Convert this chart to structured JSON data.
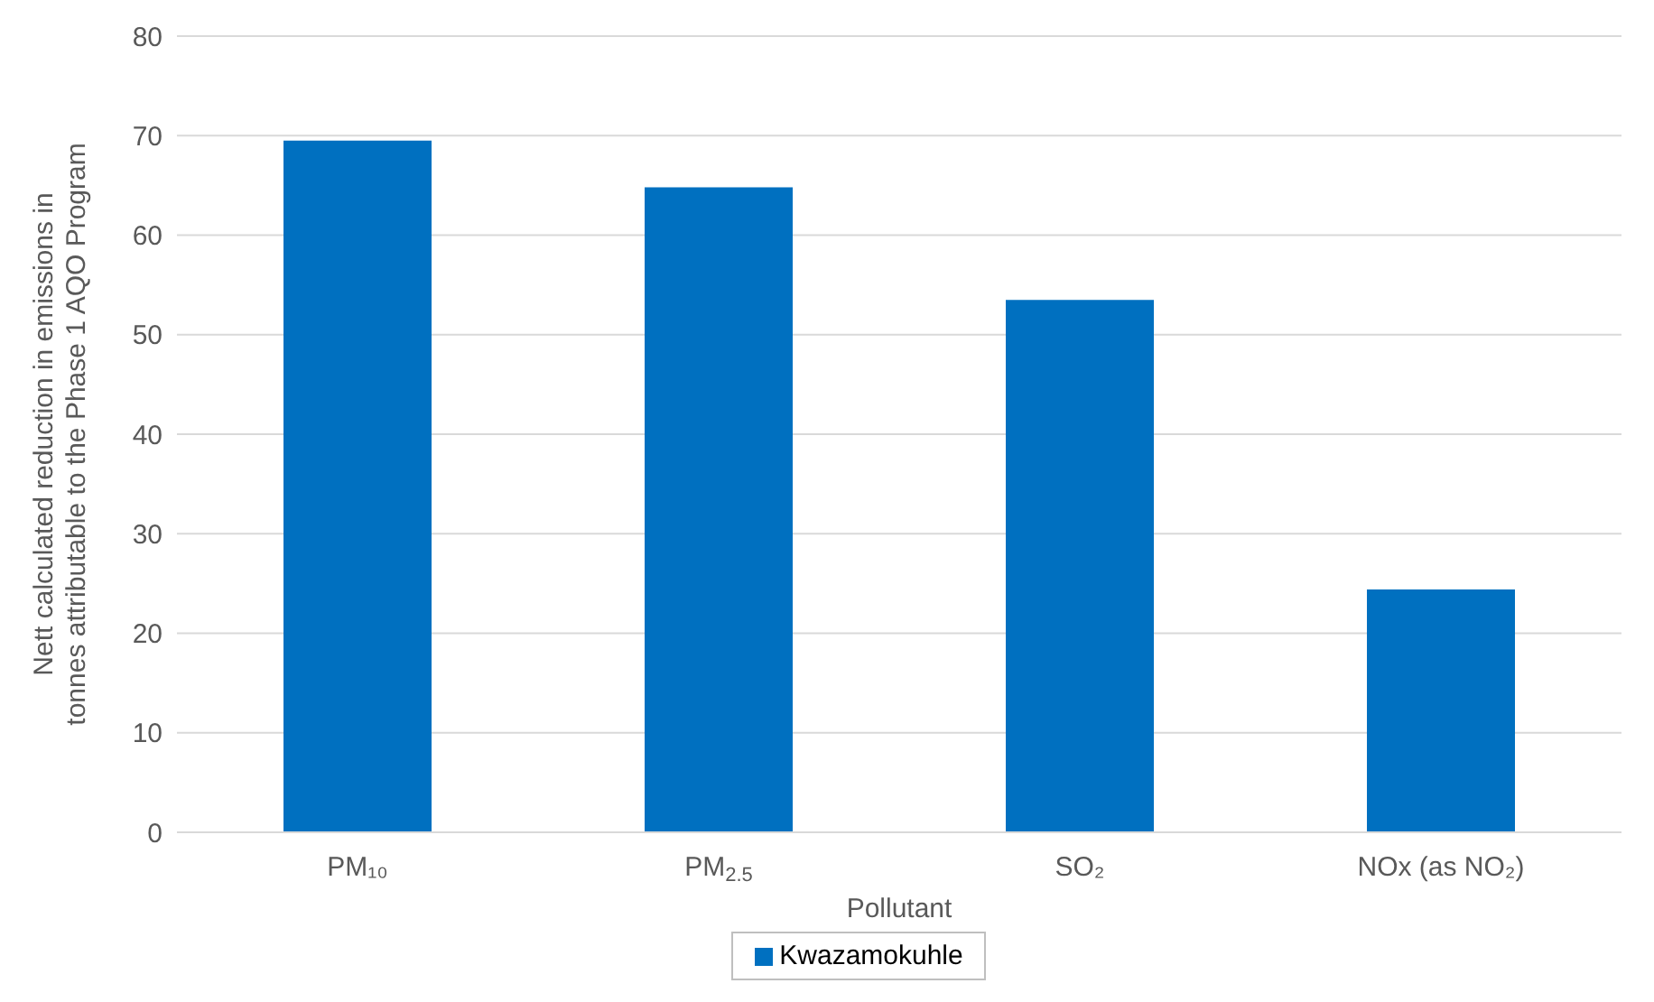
{
  "chart_data": {
    "type": "bar",
    "xlabel": "Pollutant",
    "ylabel": "Nett calculated reduction in emissions in tonnes attributable to the Phase 1 AQO Program",
    "categories": [
      "PM₁₀",
      "PM$_{2.5}$",
      "SO₂",
      "NOx (as NO₂)"
    ],
    "series": [
      {
        "name": "Kwazamokuhle",
        "color": "#0070c0",
        "values": [
          69.5,
          64.8,
          53.5,
          24.4
        ]
      }
    ],
    "ylim": [
      0,
      80
    ],
    "yticks": [
      0,
      10,
      20,
      30,
      40,
      50,
      60,
      70,
      80
    ],
    "grid": "y",
    "legend": "bottom"
  }
}
